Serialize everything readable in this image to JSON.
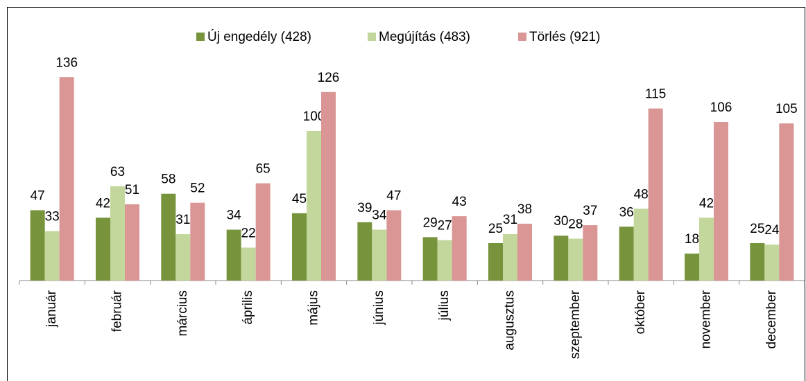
{
  "chart_data": {
    "type": "bar",
    "categories": [
      "január",
      "február",
      "március",
      "április",
      "május",
      "június",
      "július",
      "augusztus",
      "szeptember",
      "október",
      "november",
      "december"
    ],
    "series": [
      {
        "name": "Új engedély (428)",
        "color": "#77933c",
        "values": [
          47,
          42,
          58,
          34,
          45,
          39,
          29,
          25,
          30,
          36,
          18,
          25
        ]
      },
      {
        "name": "Megújítás (483)",
        "color": "#c3d69b",
        "values": [
          33,
          63,
          31,
          22,
          100,
          34,
          27,
          31,
          28,
          48,
          42,
          24
        ]
      },
      {
        "name": "Törlés (921)",
        "color": "#d99694",
        "values": [
          136,
          51,
          52,
          65,
          126,
          47,
          43,
          38,
          37,
          115,
          106,
          105
        ]
      }
    ],
    "legend": "top"
  }
}
